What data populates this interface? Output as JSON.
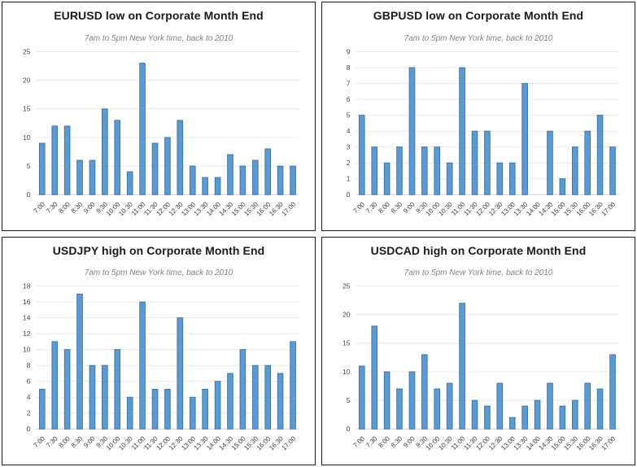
{
  "page": {
    "background": "#ffffff",
    "panel_border_color": "#1b1b1b",
    "grid_color": "#e8e8e8",
    "baseline_color": "#cfcfcf"
  },
  "chart_data": [
    {
      "type": "bar",
      "title": "EURUSD low on Corporate Month End",
      "subtitle": "7am to 5pm New York time, back to 2010",
      "categories": [
        "7:00",
        "7:30",
        "8:00",
        "8:30",
        "9:00",
        "9:30",
        "10:00",
        "10:30",
        "11:00",
        "11:30",
        "12:00",
        "12:30",
        "13:00",
        "13:30",
        "14:00",
        "14:30",
        "15:00",
        "15:30",
        "16:00",
        "16:30",
        "17:00"
      ],
      "values": [
        9,
        12,
        12,
        6,
        6,
        15,
        13,
        4,
        23,
        9,
        10,
        13,
        5,
        3,
        3,
        7,
        5,
        6,
        8,
        5,
        5
      ],
      "xlabel": "",
      "ylabel": "",
      "ylim": [
        0,
        25
      ],
      "ytick_step": 5,
      "grid": true,
      "legend": "none",
      "bar_color": "#5B9BD5",
      "bar_border": "#41719C"
    },
    {
      "type": "bar",
      "title": "GBPUSD low on Corporate Month End",
      "subtitle": "7am to 5pm New York time, back to 2010",
      "categories": [
        "7:00",
        "7:30",
        "8:00",
        "8:30",
        "9:00",
        "9:30",
        "10:00",
        "10:30",
        "11:00",
        "11:30",
        "12:00",
        "12:30",
        "13:00",
        "13:30",
        "14:00",
        "14:30",
        "15:00",
        "15:30",
        "16:00",
        "16:30",
        "17:00"
      ],
      "values": [
        5,
        3,
        2,
        3,
        8,
        3,
        3,
        2,
        8,
        4,
        4,
        2,
        2,
        7,
        0,
        4,
        1,
        3,
        4,
        5,
        3
      ],
      "xlabel": "",
      "ylabel": "",
      "ylim": [
        0,
        9
      ],
      "ytick_step": 1,
      "grid": true,
      "legend": "none",
      "bar_color": "#5B9BD5",
      "bar_border": "#41719C"
    },
    {
      "type": "bar",
      "title": "USDJPY high on Corporate Month End",
      "subtitle": "7am to 5pm New York time, back to 2010",
      "categories": [
        "7:00",
        "7:30",
        "8:00",
        "8:30",
        "9:00",
        "9:30",
        "10:00",
        "10:30",
        "11:00",
        "11:30",
        "12:00",
        "12:30",
        "13:00",
        "13:30",
        "14:00",
        "14:30",
        "15:00",
        "15:30",
        "16:00",
        "16:30",
        "17:00"
      ],
      "values": [
        5,
        11,
        10,
        17,
        8,
        8,
        10,
        4,
        16,
        5,
        5,
        14,
        4,
        5,
        6,
        7,
        10,
        8,
        8,
        7,
        11
      ],
      "xlabel": "",
      "ylabel": "",
      "ylim": [
        0,
        18
      ],
      "ytick_step": 2,
      "grid": true,
      "legend": "none",
      "bar_color": "#5B9BD5",
      "bar_border": "#41719C"
    },
    {
      "type": "bar",
      "title": "USDCAD high on Corporate Month End",
      "subtitle": "7am to 5pm New York time, back to 2010",
      "categories": [
        "7:00",
        "7:30",
        "8:00",
        "8:30",
        "9:00",
        "9:30",
        "10:00",
        "10:30",
        "11:00",
        "11:30",
        "12:00",
        "12:30",
        "13:00",
        "13:30",
        "14:00",
        "14:30",
        "15:00",
        "15:30",
        "16:00",
        "16:30",
        "17:00"
      ],
      "values": [
        11,
        18,
        10,
        7,
        10,
        13,
        7,
        8,
        22,
        5,
        4,
        8,
        2,
        4,
        5,
        8,
        4,
        5,
        8,
        7,
        13
      ],
      "xlabel": "",
      "ylabel": "",
      "ylim": [
        0,
        25
      ],
      "ytick_step": 5,
      "grid": true,
      "legend": "none",
      "bar_color": "#5B9BD5",
      "bar_border": "#41719C"
    }
  ]
}
